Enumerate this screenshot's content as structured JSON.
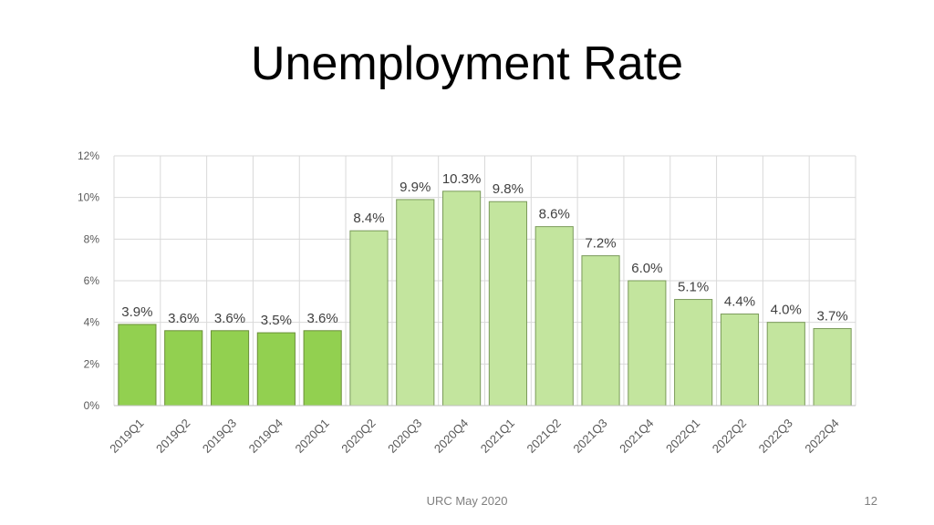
{
  "slide": {
    "title": "Unemployment Rate",
    "footer": "URC May 2020",
    "page_number": "12"
  },
  "colors": {
    "actual_fill": "#92d050",
    "actual_stroke": "#6b8f3a",
    "forecast_fill": "#c3e59e",
    "forecast_stroke": "#7a9a5a",
    "grid": "#d9d9d9"
  },
  "chart_data": {
    "type": "bar",
    "title": "",
    "xlabel": "",
    "ylabel": "",
    "categories": [
      "2019Q1",
      "2019Q2",
      "2019Q3",
      "2019Q4",
      "2020Q1",
      "2020Q2",
      "2020Q3",
      "2020Q4",
      "2021Q1",
      "2021Q2",
      "2021Q3",
      "2021Q4",
      "2022Q1",
      "2022Q2",
      "2022Q3",
      "2022Q4"
    ],
    "values": [
      3.9,
      3.6,
      3.6,
      3.5,
      3.6,
      8.4,
      9.9,
      10.3,
      9.8,
      8.6,
      7.2,
      6.0,
      5.1,
      4.4,
      4.0,
      3.7
    ],
    "data_labels": [
      "3.9%",
      "3.6%",
      "3.6%",
      "3.5%",
      "3.6%",
      "8.4%",
      "9.9%",
      "10.3%",
      "9.8%",
      "8.6%",
      "7.2%",
      "6.0%",
      "5.1%",
      "4.4%",
      "4.0%",
      "3.7%"
    ],
    "bar_style": [
      "actual",
      "actual",
      "actual",
      "actual",
      "actual",
      "forecast",
      "forecast",
      "forecast",
      "forecast",
      "forecast",
      "forecast",
      "forecast",
      "forecast",
      "forecast",
      "forecast",
      "forecast"
    ],
    "y_ticks": [
      "0%",
      "2%",
      "4%",
      "6%",
      "8%",
      "10%",
      "12%"
    ],
    "ylim": [
      0,
      12
    ],
    "grid": true,
    "legend": "none"
  }
}
